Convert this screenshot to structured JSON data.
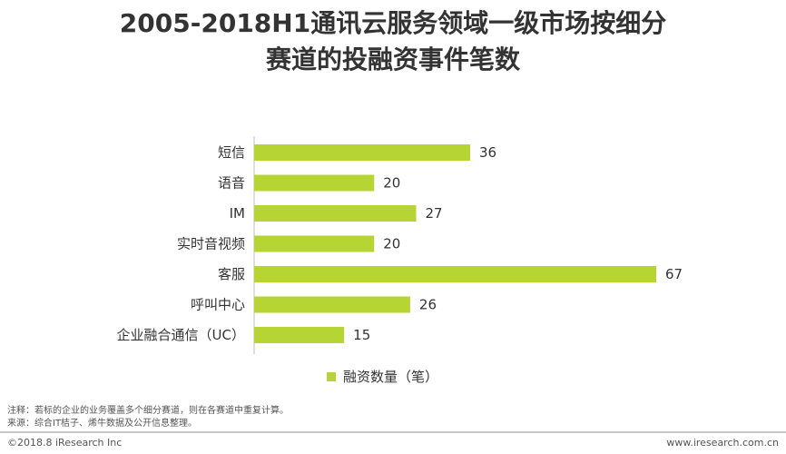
{
  "title": {
    "line1": "2005-2018H1通讯云服务领域一级市场按细分",
    "line2": "赛道的投融资事件笔数"
  },
  "chart_data": {
    "type": "bar",
    "orientation": "horizontal",
    "categories": [
      "短信",
      "语音",
      "IM",
      "实时音视频",
      "客服",
      "呼叫中心",
      "企业融合通信（UC）"
    ],
    "values": [
      36,
      20,
      27,
      20,
      67,
      26,
      15
    ],
    "series": [
      {
        "name": "融资数量（笔）",
        "values": [
          36,
          20,
          27,
          20,
          67,
          26,
          15
        ]
      }
    ],
    "bar_color": "#b6d433",
    "grid": false,
    "legend_position": "bottom"
  },
  "legend": {
    "label": "融资数量（笔）"
  },
  "notes": {
    "line1": "注释：若标的企业的业务覆盖多个细分赛道，则在各赛道中重复计算。",
    "line2": "来源：综合IT桔子、烯牛数据及公开信息整理。"
  },
  "footer": {
    "left": "©2018.8 iResearch Inc",
    "right": "www.iresearch.com.cn"
  }
}
